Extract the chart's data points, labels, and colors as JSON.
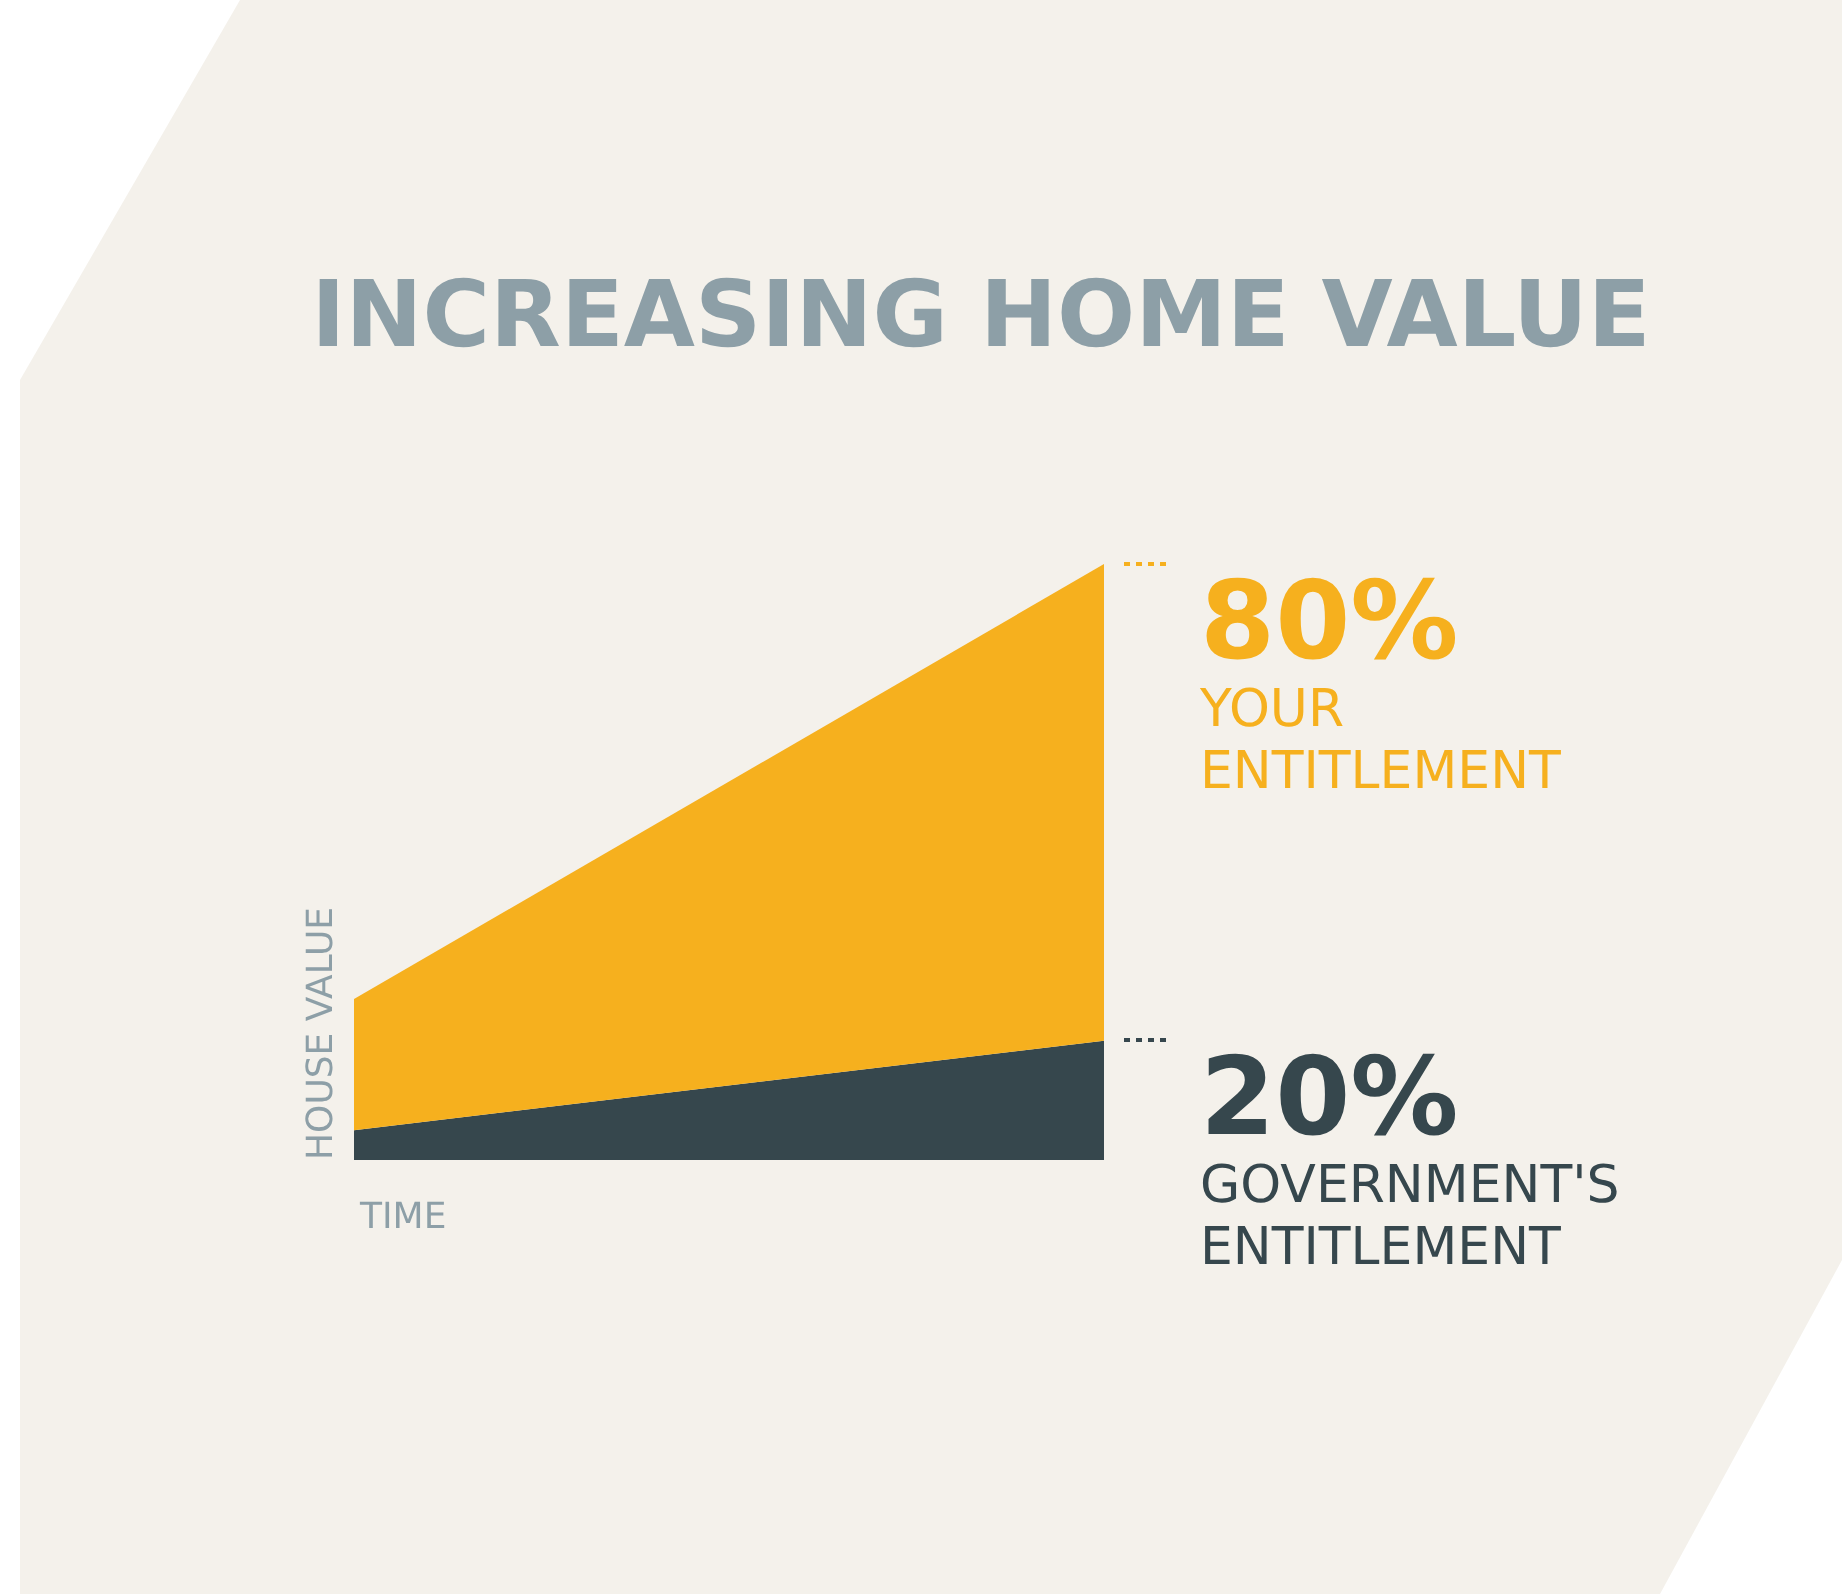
{
  "chart_data": {
    "type": "area",
    "title": "INCREASING HOME VALUE",
    "xlabel": "TIME",
    "ylabel": "HOUSE VALUE",
    "stacked": true,
    "categories": [
      null,
      null
    ],
    "series": [
      {
        "name": "GOVERNMENT'S ENTITLEMENT",
        "color": "#36474d",
        "values": [
          5,
          20
        ],
        "value_labels": [
          null,
          "20%"
        ]
      },
      {
        "name": "YOUR ENTITLEMENT",
        "color": "#f6b01e",
        "values": [
          22,
          80
        ],
        "value_labels": [
          null,
          "80%"
        ]
      }
    ],
    "grid": false,
    "legend": false
  }
}
